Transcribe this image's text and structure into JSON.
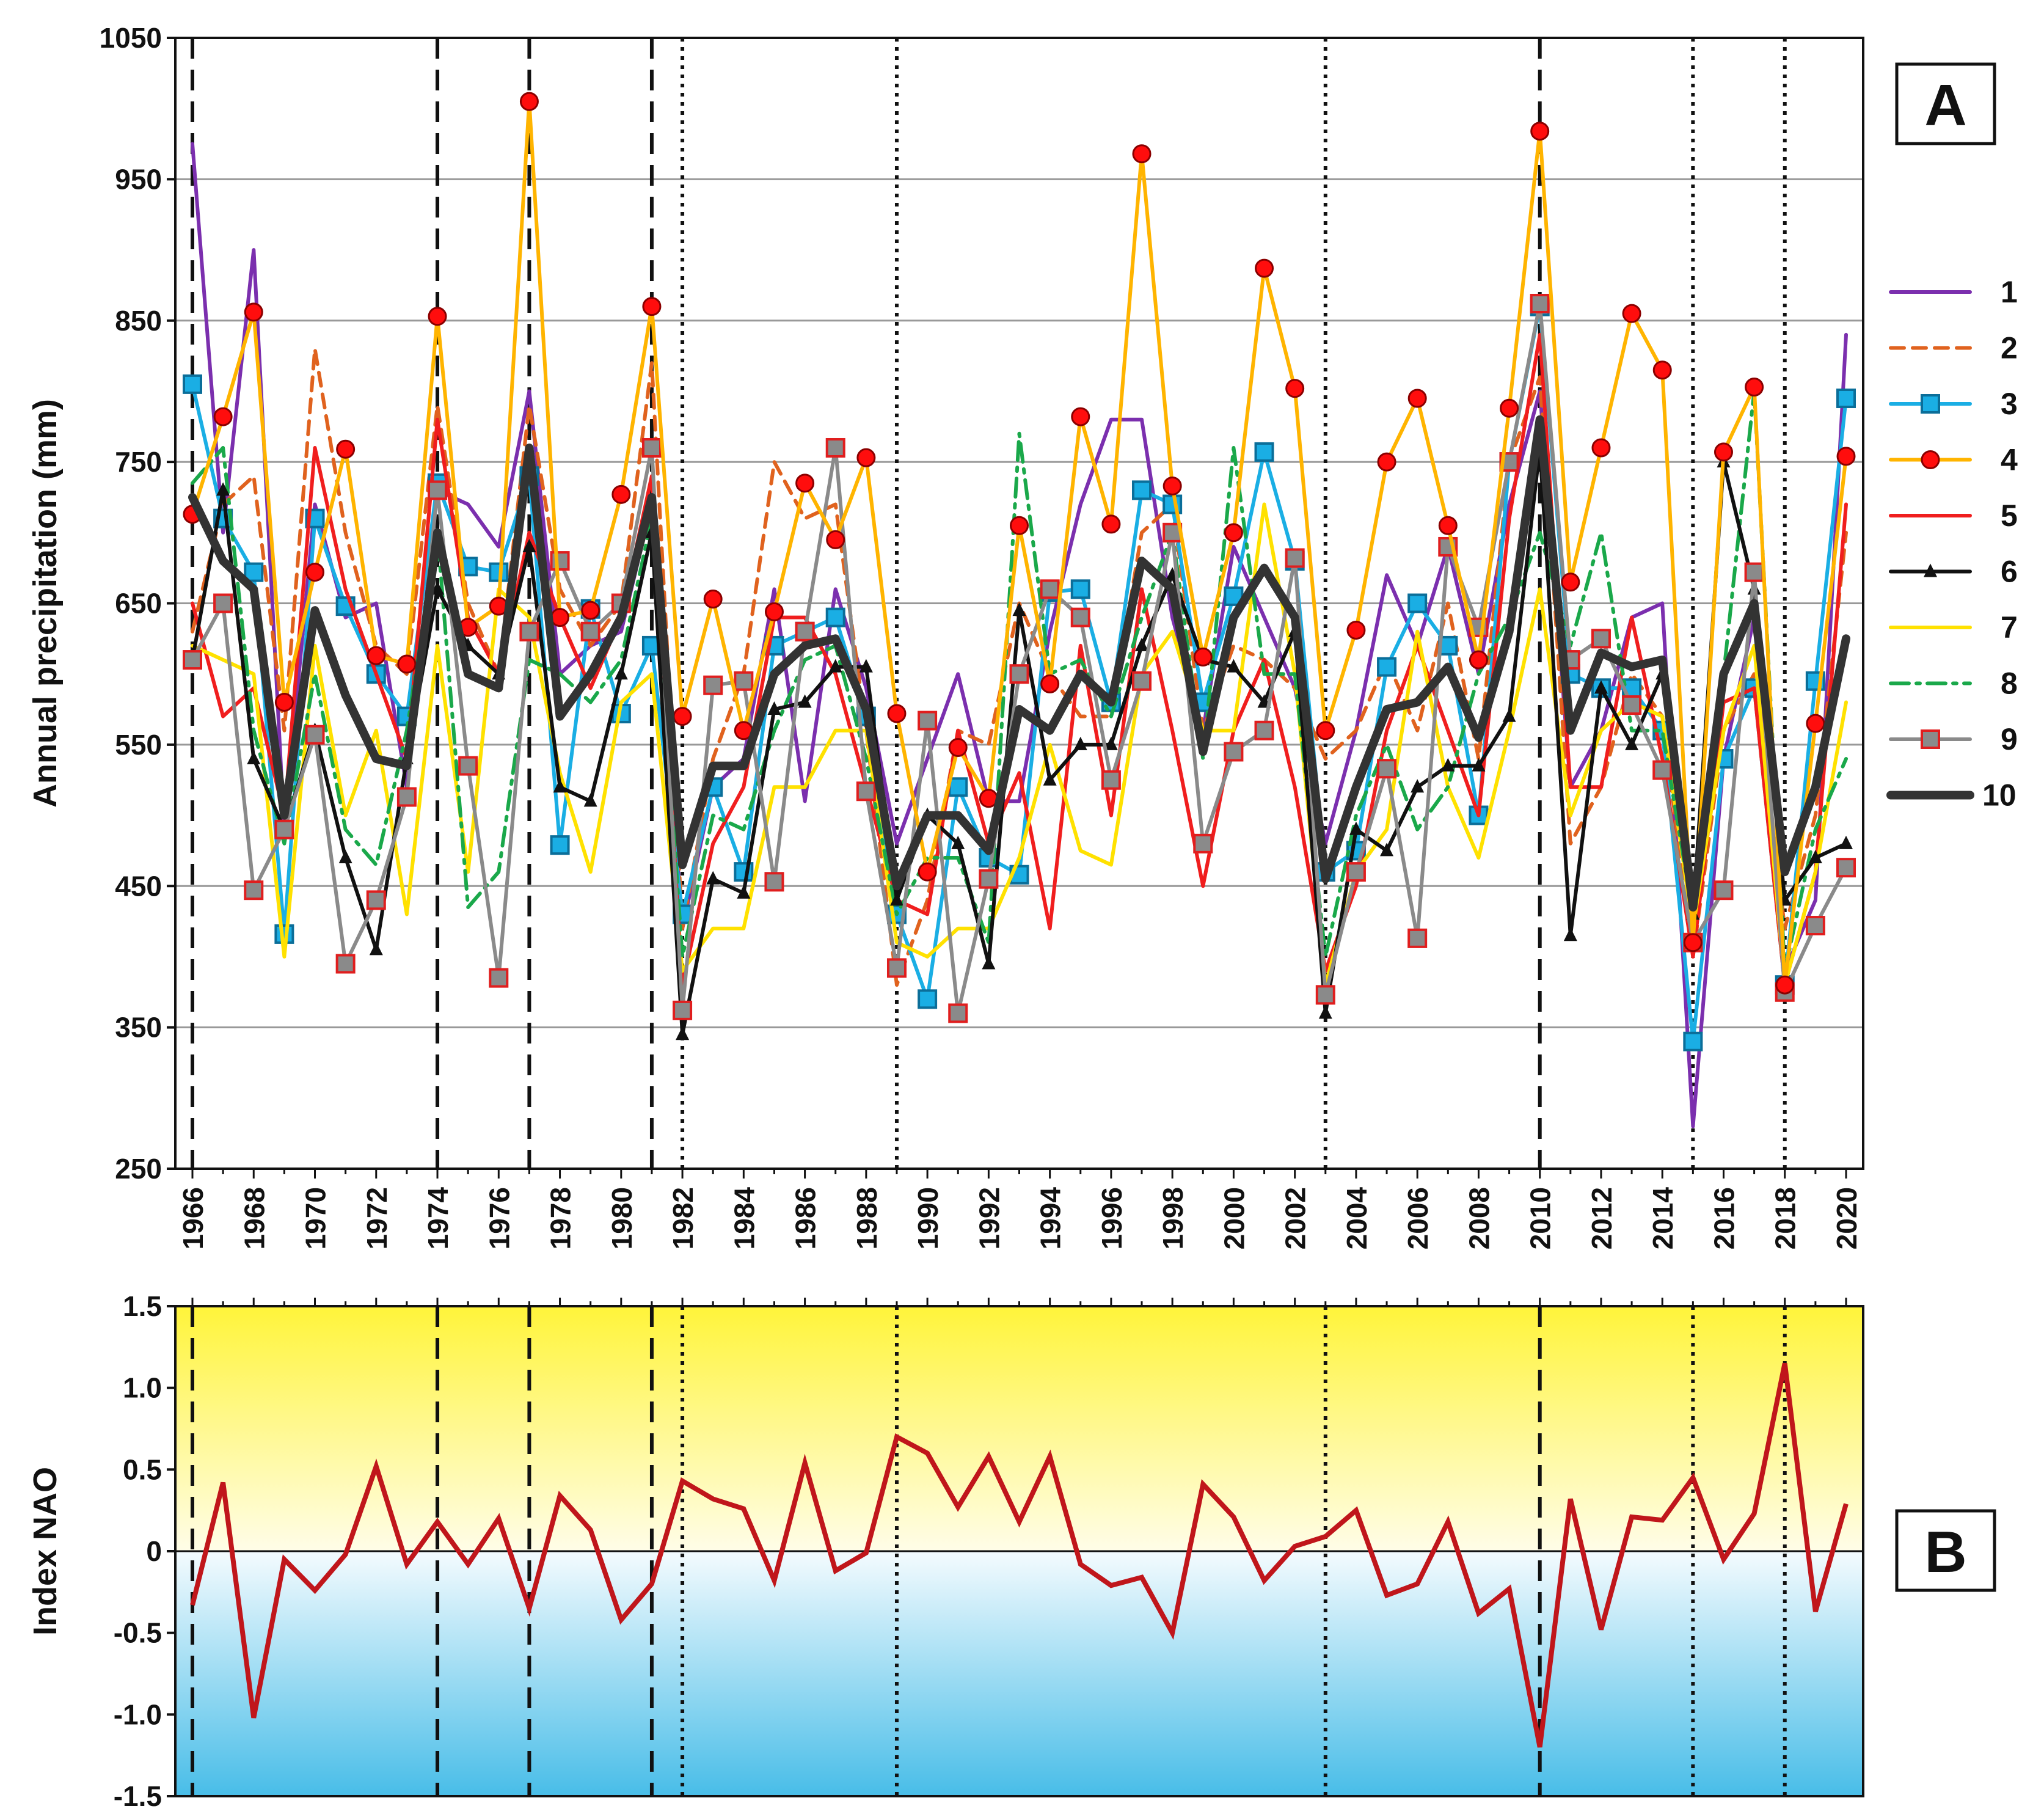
{
  "colors": {
    "series": [
      "#7b2fae",
      "#e0621e",
      "#1aaee4",
      "#ffb400",
      "#f01e1e",
      "#111111",
      "#ffe100",
      "#1aa84a",
      "#8a8a8a",
      "#333333"
    ],
    "nao_line": "#c0161b",
    "grid": "#999999",
    "positive_bg_top": "#fff43a",
    "negative_bg_bottom": "#48bde8"
  },
  "chart_data": [
    {
      "type": "line",
      "panel_label": "A",
      "ylabel": "Annual precipitation (mm)",
      "xlabel": "",
      "ylim": [
        250,
        1050
      ],
      "yticks": [
        250,
        350,
        450,
        550,
        650,
        750,
        850,
        950,
        1050
      ],
      "xlim": [
        1966,
        2020
      ],
      "xticks": [
        1966,
        1968,
        1970,
        1972,
        1974,
        1976,
        1978,
        1980,
        1982,
        1984,
        1986,
        1988,
        1990,
        1992,
        1994,
        1996,
        1998,
        2000,
        2002,
        2004,
        2006,
        2008,
        2010,
        2012,
        2014,
        2016,
        2018,
        2020
      ],
      "grid": "horizontal",
      "legend_position": "right",
      "event_lines": {
        "dashed": [
          1966,
          1974,
          1977,
          1981,
          2010
        ],
        "dotted": [
          1982,
          1989,
          2003,
          2015,
          2018
        ]
      },
      "x": [
        1966,
        1967,
        1968,
        1969,
        1970,
        1971,
        1972,
        1973,
        1974,
        1975,
        1976,
        1977,
        1978,
        1979,
        1980,
        1981,
        1982,
        1983,
        1984,
        1985,
        1986,
        1987,
        1988,
        1989,
        1990,
        1991,
        1992,
        1993,
        1994,
        1995,
        1996,
        1997,
        1998,
        1999,
        2000,
        2001,
        2002,
        2003,
        2004,
        2005,
        2006,
        2007,
        2008,
        2009,
        2010,
        2011,
        2012,
        2013,
        2014,
        2015,
        2016,
        2017,
        2018,
        2019,
        2020
      ],
      "series": [
        {
          "name": "1",
          "style": "solid",
          "marker": "none",
          "values": [
            975,
            700,
            900,
            490,
            720,
            640,
            650,
            520,
            730,
            720,
            690,
            800,
            600,
            620,
            630,
            720,
            420,
            520,
            540,
            660,
            510,
            660,
            590,
            480,
            540,
            600,
            510,
            510,
            630,
            720,
            780,
            780,
            640,
            560,
            690,
            640,
            590,
            480,
            560,
            670,
            620,
            690,
            600,
            720,
            800,
            520,
            560,
            640,
            650,
            280,
            540,
            640,
            390,
            440,
            840
          ]
        },
        {
          "name": "2",
          "style": "dashed",
          "marker": "none",
          "values": [
            630,
            720,
            740,
            560,
            830,
            700,
            620,
            600,
            790,
            650,
            600,
            790,
            660,
            620,
            650,
            820,
            420,
            540,
            600,
            750,
            710,
            720,
            560,
            380,
            440,
            560,
            550,
            650,
            600,
            570,
            570,
            700,
            720,
            560,
            620,
            610,
            590,
            540,
            560,
            610,
            560,
            650,
            540,
            750,
            810,
            480,
            520,
            600,
            570,
            400,
            560,
            600,
            420,
            500,
            700
          ]
        },
        {
          "name": "3",
          "style": "solid",
          "marker": "square",
          "values": [
            805,
            710,
            672,
            416,
            710,
            648,
            600,
            570,
            735,
            676,
            672,
            740,
            479,
            646,
            572,
            620,
            430,
            520,
            460,
            620,
            630,
            640,
            570,
            430,
            370,
            520,
            470,
            458,
            658,
            660,
            580,
            730,
            720,
            580,
            655,
            757,
            680,
            460,
            475,
            605,
            650,
            620,
            500,
            750,
            860,
            600,
            590,
            590,
            560,
            340,
            540,
            590,
            380,
            595,
            795
          ]
        },
        {
          "name": "4",
          "style": "solid",
          "marker": "circle",
          "values": [
            713,
            782,
            856,
            580,
            672,
            759,
            613,
            607,
            853,
            633,
            648,
            1005,
            640,
            645,
            727,
            860,
            570,
            653,
            560,
            644,
            735,
            695,
            753,
            572,
            460,
            548,
            512,
            705,
            593,
            782,
            706,
            968,
            733,
            612,
            700,
            887,
            802,
            560,
            631,
            750,
            795,
            705,
            610,
            788,
            984,
            665,
            760,
            855,
            815,
            410,
            757,
            803,
            380,
            565,
            754
          ]
        },
        {
          "name": "5",
          "style": "solid",
          "marker": "none",
          "values": [
            650,
            570,
            590,
            500,
            760,
            660,
            600,
            540,
            780,
            640,
            600,
            700,
            640,
            590,
            640,
            740,
            380,
            480,
            520,
            640,
            640,
            600,
            520,
            440,
            430,
            560,
            480,
            530,
            420,
            620,
            500,
            660,
            560,
            450,
            560,
            610,
            520,
            390,
            450,
            560,
            620,
            560,
            500,
            710,
            840,
            520,
            520,
            640,
            540,
            400,
            580,
            590,
            380,
            460,
            720
          ]
        },
        {
          "name": "6",
          "style": "solid",
          "marker": "triangle",
          "values": [
            610,
            730,
            540,
            490,
            560,
            470,
            405,
            540,
            660,
            620,
            600,
            690,
            520,
            510,
            600,
            700,
            345,
            455,
            445,
            575,
            580,
            605,
            605,
            440,
            500,
            480,
            395,
            645,
            525,
            550,
            550,
            620,
            670,
            610,
            605,
            580,
            630,
            360,
            490,
            475,
            520,
            535,
            535,
            570,
            760,
            415,
            590,
            550,
            600,
            430,
            750,
            660,
            440,
            470,
            480
          ]
        },
        {
          "name": "7",
          "style": "solid",
          "marker": "none",
          "values": [
            620,
            610,
            600,
            400,
            620,
            500,
            560,
            430,
            620,
            460,
            660,
            640,
            530,
            460,
            580,
            600,
            390,
            420,
            420,
            520,
            520,
            560,
            560,
            410,
            400,
            420,
            420,
            470,
            550,
            475,
            465,
            600,
            630,
            560,
            560,
            720,
            600,
            380,
            460,
            490,
            630,
            520,
            470,
            560,
            660,
            500,
            560,
            580,
            570,
            420,
            560,
            620,
            380,
            460,
            580
          ]
        },
        {
          "name": "8",
          "style": "dashdot",
          "marker": "none",
          "values": [
            735,
            760,
            560,
            480,
            600,
            490,
            465,
            560,
            700,
            435,
            460,
            610,
            600,
            580,
            610,
            710,
            400,
            500,
            490,
            560,
            610,
            620,
            540,
            430,
            470,
            470,
            410,
            770,
            600,
            610,
            570,
            640,
            700,
            540,
            760,
            600,
            600,
            400,
            500,
            550,
            490,
            520,
            600,
            640,
            700,
            620,
            700,
            560,
            560,
            430,
            600,
            800,
            390,
            490,
            540
          ]
        },
        {
          "name": "9",
          "style": "solid",
          "marker": "square",
          "values": [
            610,
            650,
            447,
            490,
            557,
            395,
            440,
            513,
            730,
            535,
            385,
            630,
            680,
            630,
            650,
            760,
            362,
            592,
            595,
            453,
            630,
            760,
            517,
            392,
            567,
            360,
            455,
            600,
            660,
            640,
            525,
            595,
            700,
            480,
            545,
            560,
            682,
            373,
            460,
            533,
            413,
            690,
            633,
            750,
            862,
            610,
            625,
            578,
            532,
            410,
            447,
            672,
            375,
            422,
            463
          ]
        },
        {
          "name": "10",
          "style": "bold",
          "marker": "none",
          "values": [
            725,
            680,
            660,
            500,
            645,
            585,
            540,
            535,
            700,
            600,
            590,
            760,
            570,
            600,
            640,
            725,
            465,
            535,
            535,
            600,
            620,
            625,
            575,
            450,
            500,
            500,
            475,
            575,
            560,
            600,
            580,
            680,
            660,
            545,
            640,
            675,
            640,
            455,
            520,
            575,
            580,
            605,
            555,
            630,
            780,
            560,
            615,
            605,
            610,
            435,
            600,
            650,
            460,
            520,
            625
          ]
        }
      ]
    },
    {
      "type": "line",
      "panel_label": "B",
      "ylabel": "Index NAO",
      "xlabel": "",
      "ylim": [
        -1.5,
        1.5
      ],
      "yticks": [
        "-1.5",
        "-1.0",
        "-0.5",
        "0",
        "0.5",
        "1.0",
        "1.5"
      ],
      "xlim": [
        1966,
        2020
      ],
      "background": "positive yellow gradient, negative blue gradient",
      "event_lines": {
        "dashed": [
          1966,
          1974,
          1977,
          1981,
          2010
        ],
        "dotted": [
          1982,
          1989,
          2003,
          2015,
          2018
        ]
      },
      "x": [
        1966,
        1967,
        1968,
        1969,
        1970,
        1971,
        1972,
        1973,
        1974,
        1975,
        1976,
        1977,
        1978,
        1979,
        1980,
        1981,
        1982,
        1983,
        1984,
        1985,
        1986,
        1987,
        1988,
        1989,
        1990,
        1991,
        1992,
        1993,
        1994,
        1995,
        1996,
        1997,
        1998,
        1999,
        2000,
        2001,
        2002,
        2003,
        2004,
        2005,
        2006,
        2007,
        2008,
        2009,
        2010,
        2011,
        2012,
        2013,
        2014,
        2015,
        2016,
        2017,
        2018,
        2019,
        2020
      ],
      "series": [
        {
          "name": "",
          "values": [
            -0.33,
            0.42,
            -1.02,
            -0.05,
            -0.24,
            -0.02,
            0.52,
            -0.08,
            0.18,
            -0.08,
            0.2,
            -0.35,
            0.34,
            0.13,
            -0.42,
            -0.2,
            0.43,
            0.32,
            0.26,
            -0.18,
            0.54,
            -0.12,
            -0.01,
            0.7,
            0.6,
            0.27,
            0.58,
            0.18,
            0.58,
            -0.08,
            -0.21,
            -0.16,
            -0.5,
            0.41,
            0.21,
            -0.18,
            0.03,
            0.09,
            0.25,
            -0.27,
            -0.2,
            0.18,
            -0.38,
            -0.23,
            -1.2,
            0.32,
            -0.48,
            0.21,
            0.19,
            0.45,
            -0.05,
            0.23,
            1.15,
            -0.37,
            0.29
          ]
        }
      ]
    }
  ]
}
